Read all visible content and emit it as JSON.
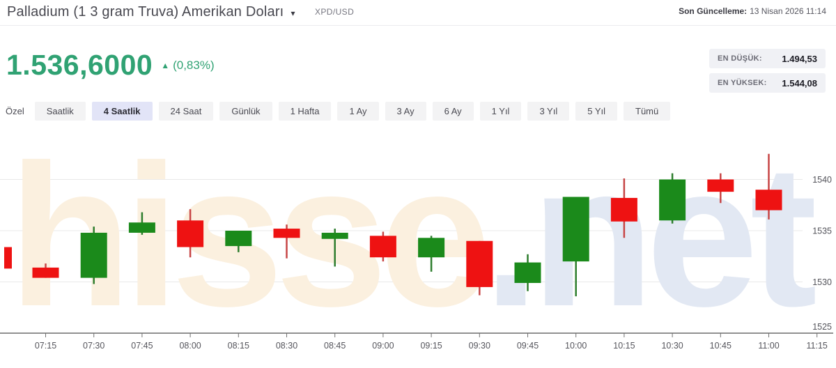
{
  "header": {
    "title": "Palladium (1 3 gram Truva) Amerikan Doları",
    "caret": "▾",
    "symbol": "XPD/USD",
    "updated_label": "Son Güncelleme:",
    "updated_value": "13 Nisan 2026 11:14"
  },
  "price": {
    "value": "1.536,6000",
    "direction": "▲",
    "change": "(0,83%)",
    "up_color": "#30a273"
  },
  "stats": {
    "low_label": "EN DÜŞÜK:",
    "low_value": "1.494,53",
    "high_label": "EN YÜKSEK:",
    "high_value": "1.544,08"
  },
  "tabs": {
    "items": [
      "Özel",
      "Saatlik",
      "4 Saatlik",
      "24 Saat",
      "Günlük",
      "1 Hafta",
      "1 Ay",
      "3 Ay",
      "6 Ay",
      "1 Yıl",
      "3 Yıl",
      "5 Yıl",
      "Tümü"
    ],
    "selected": "4 Saatlik"
  },
  "watermark": {
    "part1": "hisse",
    "part2": ".net",
    "color1": "#fbf0df",
    "color2": "#e2e8f3"
  },
  "chart_data": {
    "type": "candlestick",
    "x_labels": [
      "07:15",
      "07:30",
      "07:45",
      "08:00",
      "08:15",
      "08:30",
      "08:45",
      "09:00",
      "09:15",
      "09:30",
      "09:45",
      "10:00",
      "10:15",
      "10:30",
      "10:45",
      "11:00",
      "11:15"
    ],
    "y_ticks": [
      1525,
      1530,
      1535,
      1540
    ],
    "ylim": [
      1524.5,
      1545
    ],
    "grid": true,
    "up_color": "#1b8a1b",
    "down_color": "#ee1212",
    "up_wick_color": "#2d7d2d",
    "down_wick_color": "#c74545",
    "candles": [
      {
        "time": "07:00",
        "open": 1533.4,
        "high": 1533.4,
        "low": 1531.3,
        "close": 1531.3,
        "partial": true
      },
      {
        "time": "07:15",
        "open": 1531.4,
        "high": 1531.8,
        "low": 1530.4,
        "close": 1530.4
      },
      {
        "time": "07:30",
        "open": 1530.4,
        "high": 1535.4,
        "low": 1529.8,
        "close": 1534.8
      },
      {
        "time": "07:45",
        "open": 1534.8,
        "high": 1536.8,
        "low": 1534.6,
        "close": 1535.8
      },
      {
        "time": "08:00",
        "open": 1536.0,
        "high": 1537.1,
        "low": 1532.4,
        "close": 1533.4
      },
      {
        "time": "08:15",
        "open": 1533.5,
        "high": 1535.0,
        "low": 1532.9,
        "close": 1535.0
      },
      {
        "time": "08:30",
        "open": 1535.2,
        "high": 1535.6,
        "low": 1532.3,
        "close": 1534.3
      },
      {
        "time": "08:45",
        "open": 1534.2,
        "high": 1535.2,
        "low": 1531.5,
        "close": 1534.8
      },
      {
        "time": "09:00",
        "open": 1534.5,
        "high": 1534.9,
        "low": 1532.0,
        "close": 1532.4
      },
      {
        "time": "09:15",
        "open": 1532.4,
        "high": 1534.5,
        "low": 1531.0,
        "close": 1534.3
      },
      {
        "time": "09:30",
        "open": 1534.0,
        "high": 1534.0,
        "low": 1528.7,
        "close": 1529.5
      },
      {
        "time": "09:45",
        "open": 1529.9,
        "high": 1532.7,
        "low": 1529.1,
        "close": 1531.9
      },
      {
        "time": "10:00",
        "open": 1532.0,
        "high": 1538.3,
        "low": 1528.6,
        "close": 1538.3
      },
      {
        "time": "10:15",
        "open": 1538.2,
        "high": 1540.1,
        "low": 1534.3,
        "close": 1535.9
      },
      {
        "time": "10:30",
        "open": 1536.0,
        "high": 1540.6,
        "low": 1535.7,
        "close": 1540.0
      },
      {
        "time": "10:45",
        "open": 1540.0,
        "high": 1540.6,
        "low": 1537.7,
        "close": 1538.8
      },
      {
        "time": "11:00",
        "open": 1539.0,
        "high": 1542.5,
        "low": 1536.1,
        "close": 1537.0
      }
    ]
  }
}
